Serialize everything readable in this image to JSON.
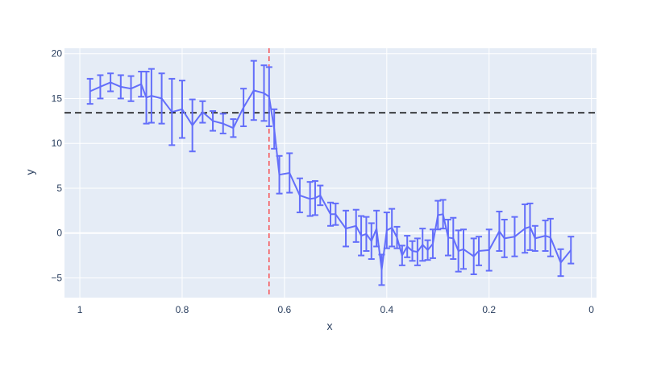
{
  "chart_data": {
    "type": "line",
    "title": "",
    "xlabel": "x",
    "ylabel": "y",
    "xlim": [
      1.03,
      -0.01
    ],
    "ylim": [
      -7.2,
      20.6
    ],
    "x_reversed": true,
    "xticks": [
      1,
      0.8,
      0.6,
      0.4,
      0.2,
      0
    ],
    "yticks": [
      -5,
      0,
      5,
      10,
      15,
      20
    ],
    "grid": true,
    "colors": {
      "line": "#636efa",
      "plot_bg": "#e5ecf6",
      "grid": "#ffffff",
      "hline": "#000000",
      "vline": "#ff0000",
      "text": "#2a3f5f"
    },
    "reference_lines": {
      "horizontal_y": 13.4,
      "vertical_x": 0.63
    },
    "series": [
      {
        "x": [
          0.98,
          0.96,
          0.94,
          0.92,
          0.9,
          0.88,
          0.87,
          0.86,
          0.84,
          0.82,
          0.8,
          0.78,
          0.76,
          0.74,
          0.72,
          0.7,
          0.68,
          0.66,
          0.64,
          0.63,
          0.62,
          0.61,
          0.59,
          0.57,
          0.55,
          0.54,
          0.53,
          0.51,
          0.5,
          0.48,
          0.46,
          0.45,
          0.44,
          0.43,
          0.42,
          0.41,
          0.4,
          0.39,
          0.38,
          0.37,
          0.36,
          0.35,
          0.34,
          0.33,
          0.32,
          0.31,
          0.3,
          0.29,
          0.28,
          0.27,
          0.26,
          0.25,
          0.23,
          0.22,
          0.2,
          0.18,
          0.17,
          0.15,
          0.13,
          0.12,
          0.11,
          0.09,
          0.08,
          0.06,
          0.04
        ],
        "y": [
          15.8,
          16.3,
          16.8,
          16.3,
          16.1,
          16.6,
          15.1,
          15.3,
          15.0,
          13.5,
          13.8,
          12.0,
          13.5,
          12.5,
          12.2,
          11.7,
          14.0,
          15.9,
          15.6,
          15.2,
          11.6,
          6.5,
          6.7,
          4.2,
          3.8,
          3.9,
          4.2,
          2.1,
          2.1,
          0.5,
          0.8,
          -0.3,
          -0.1,
          -0.9,
          0.5,
          -4.1,
          0.3,
          0.6,
          -0.5,
          -2.5,
          -1.5,
          -2.0,
          -2.1,
          -1.3,
          -1.9,
          -1.2,
          2.0,
          2.1,
          -0.5,
          -0.6,
          -2.0,
          -1.8,
          -2.6,
          -2.0,
          -1.9,
          0.2,
          -0.6,
          -0.4,
          0.5,
          0.7,
          -0.6,
          -0.3,
          -0.5,
          -3.3,
          -1.9
        ],
        "error": [
          1.4,
          1.3,
          1.0,
          1.3,
          1.4,
          1.4,
          2.9,
          3.0,
          2.8,
          3.7,
          3.2,
          2.9,
          1.2,
          1.1,
          1.1,
          1.0,
          2.1,
          3.3,
          3.1,
          3.3,
          2.2,
          2.1,
          2.2,
          1.9,
          1.9,
          1.9,
          1.1,
          1.3,
          1.2,
          2.0,
          1.8,
          2.2,
          1.9,
          2.0,
          2.0,
          1.7,
          2.0,
          2.1,
          1.2,
          1.1,
          1.2,
          1.1,
          1.5,
          1.8,
          1.1,
          1.6,
          1.6,
          1.6,
          2.0,
          2.3,
          2.3,
          2.2,
          2.0,
          1.6,
          2.3,
          2.2,
          2.1,
          2.2,
          2.7,
          2.6,
          1.4,
          1.7,
          2.1,
          1.5,
          1.5
        ]
      }
    ]
  }
}
